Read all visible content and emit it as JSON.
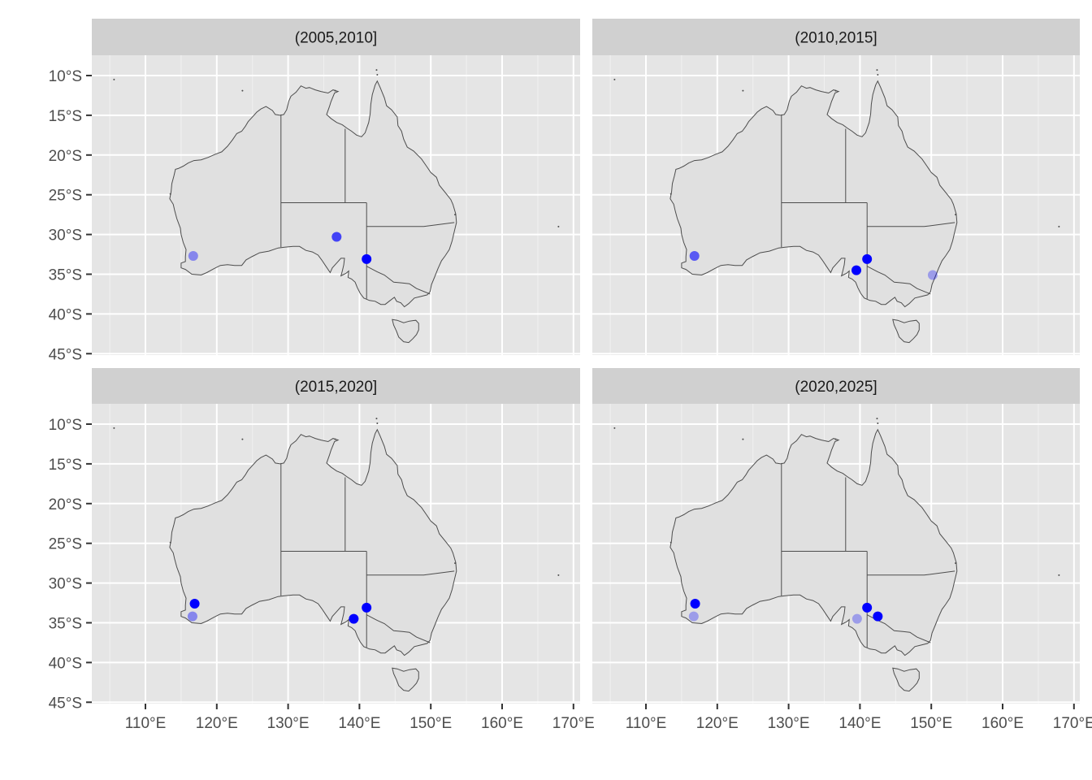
{
  "chart_data": {
    "type": "scatter",
    "map_region": "Australia",
    "x_axis_ticks": [
      "110°E",
      "120°E",
      "130°E",
      "140°E",
      "150°E",
      "160°E",
      "170°E"
    ],
    "y_axis_ticks": [
      "10°S",
      "15°S",
      "20°S",
      "25°S",
      "30°S",
      "35°S",
      "40°S",
      "45°S"
    ],
    "xlim": [
      102.5,
      171.5
    ],
    "ylim": [
      -45,
      -7.5
    ],
    "grid": true,
    "legend": "none",
    "point_color": "#0000ff",
    "panel_background": "#e5e5e5",
    "land_color": "#e0e0e0",
    "border_color": "#4d4d4d",
    "strip_color": "#d0d0d0",
    "panels": [
      {
        "label": "(2005,2010]",
        "points": [
          {
            "lon": 116.7,
            "lat": -32.7,
            "alpha": 0.4
          },
          {
            "lon": 136.8,
            "lat": -30.3,
            "alpha": 0.7
          },
          {
            "lon": 141.0,
            "lat": -33.1,
            "alpha": 1.0
          }
        ]
      },
      {
        "label": "(2010,2015]",
        "points": [
          {
            "lon": 116.8,
            "lat": -32.7,
            "alpha": 0.6
          },
          {
            "lon": 139.5,
            "lat": -34.5,
            "alpha": 1.0
          },
          {
            "lon": 141.0,
            "lat": -33.1,
            "alpha": 1.0
          },
          {
            "lon": 150.2,
            "lat": -35.1,
            "alpha": 0.3
          }
        ]
      },
      {
        "label": "(2015,2020]",
        "points": [
          {
            "lon": 116.6,
            "lat": -34.2,
            "alpha": 0.4
          },
          {
            "lon": 116.9,
            "lat": -32.6,
            "alpha": 1.0
          },
          {
            "lon": 139.2,
            "lat": -34.5,
            "alpha": 1.0
          },
          {
            "lon": 141.0,
            "lat": -33.1,
            "alpha": 1.0
          }
        ]
      },
      {
        "label": "(2020,2025]",
        "points": [
          {
            "lon": 116.7,
            "lat": -34.2,
            "alpha": 0.3
          },
          {
            "lon": 116.9,
            "lat": -32.6,
            "alpha": 1.0
          },
          {
            "lon": 139.6,
            "lat": -34.5,
            "alpha": 0.3
          },
          {
            "lon": 141.0,
            "lat": -33.1,
            "alpha": 1.0
          },
          {
            "lon": 142.5,
            "lat": -34.2,
            "alpha": 1.0
          }
        ]
      }
    ]
  }
}
